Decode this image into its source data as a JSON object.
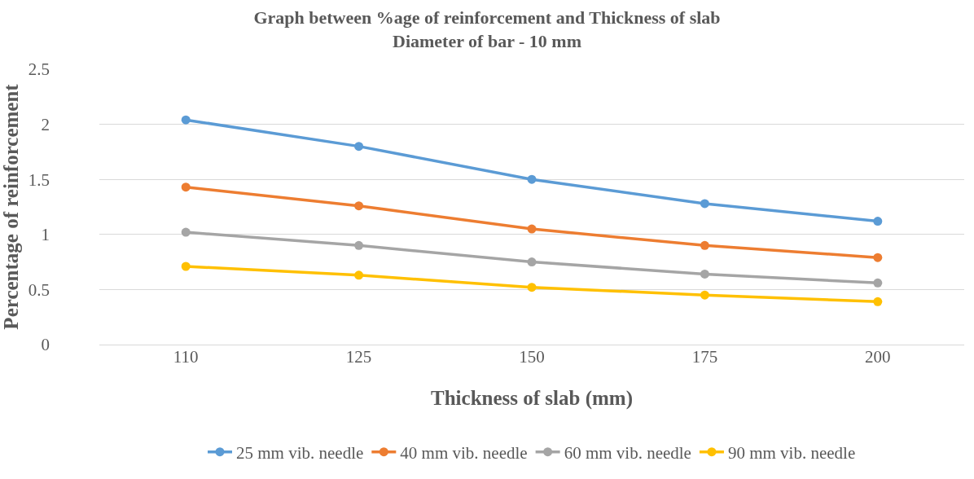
{
  "chart_data": {
    "type": "line",
    "title": "Graph between %age of reinforcement and Thickness of slab",
    "subtitle": "Diameter of bar - 10 mm",
    "xlabel": "Thickness of slab (mm)",
    "ylabel": "Percentage of reinforcement",
    "categories": [
      "110",
      "125",
      "150",
      "175",
      "200"
    ],
    "series": [
      {
        "name": "25 mm vib. needle",
        "color": "#5b9bd5",
        "values": [
          2.04,
          1.8,
          1.5,
          1.28,
          1.12
        ]
      },
      {
        "name": "40 mm vib. needle",
        "color": "#ed7d31",
        "values": [
          1.43,
          1.26,
          1.05,
          0.9,
          0.79
        ]
      },
      {
        "name": "60 mm vib. needle",
        "color": "#a5a5a5",
        "values": [
          1.02,
          0.9,
          0.75,
          0.64,
          0.56
        ]
      },
      {
        "name": "90 mm vib. needle",
        "color": "#ffc000",
        "values": [
          0.71,
          0.63,
          0.52,
          0.45,
          0.39
        ]
      }
    ],
    "ylim": [
      0,
      2.5
    ],
    "yticks": [
      0,
      0.5,
      1,
      1.5,
      2,
      2.5
    ],
    "grid": "y",
    "legend": "bottom",
    "marker": "circle",
    "line_style": "solid"
  }
}
